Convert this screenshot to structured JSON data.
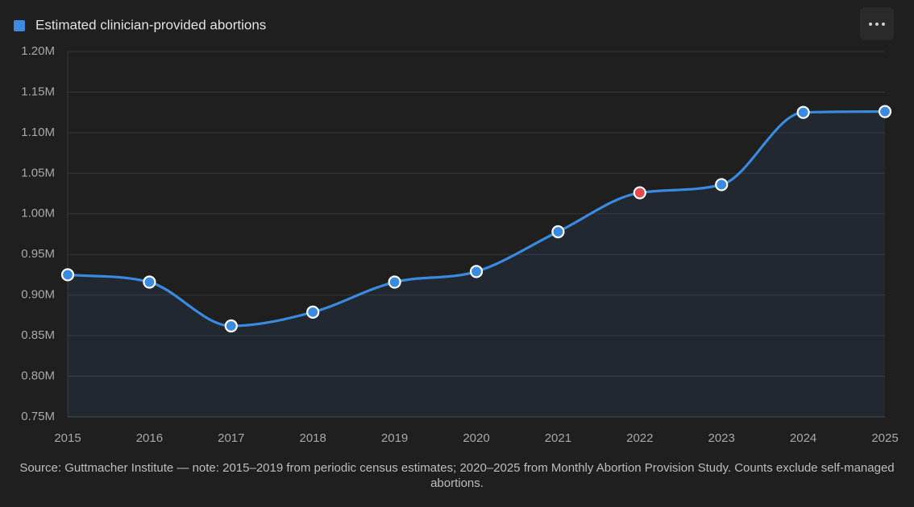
{
  "chart_data": {
    "type": "line",
    "legend_position": "top-left",
    "grid": true,
    "area": true,
    "x": [
      2015,
      2016,
      2017,
      2018,
      2019,
      2020,
      2021,
      2022,
      2023,
      2024,
      2025
    ],
    "xlim": [
      2015,
      2025
    ],
    "xticks": [
      2015,
      2016,
      2017,
      2018,
      2019,
      2020,
      2021,
      2022,
      2023,
      2024,
      2025
    ],
    "ylim": [
      750000,
      1200000
    ],
    "yticks": [
      {
        "value": 750000,
        "label": "0.75M"
      },
      {
        "value": 800000,
        "label": "0.80M"
      },
      {
        "value": 850000,
        "label": "0.85M"
      },
      {
        "value": 900000,
        "label": "0.90M"
      },
      {
        "value": 950000,
        "label": "0.95M"
      },
      {
        "value": 1000000,
        "label": "1.00M"
      },
      {
        "value": 1050000,
        "label": "1.05M"
      },
      {
        "value": 1100000,
        "label": "1.10M"
      },
      {
        "value": 1150000,
        "label": "1.15M"
      },
      {
        "value": 1200000,
        "label": "1.20M"
      }
    ],
    "series": [
      {
        "name": "Estimated clinician-provided abortions",
        "color": "#3a8ae0",
        "values": [
          925000,
          916000,
          862000,
          879000,
          916000,
          929000,
          978000,
          1026000,
          1036000,
          1125000,
          1126000
        ],
        "point_colors": [
          "#3a8ae0",
          "#3a8ae0",
          "#3a8ae0",
          "#3a8ae0",
          "#3a8ae0",
          "#3a8ae0",
          "#3a8ae0",
          "#e5484d",
          "#3a8ae0",
          "#3a8ae0",
          "#3a8ae0"
        ]
      }
    ],
    "source": "Source: Guttmacher Institute — note: 2015–2019 from periodic census estimates; 2020–2025 from Monthly Abortion Provision Study. Counts exclude self-managed abortions."
  }
}
